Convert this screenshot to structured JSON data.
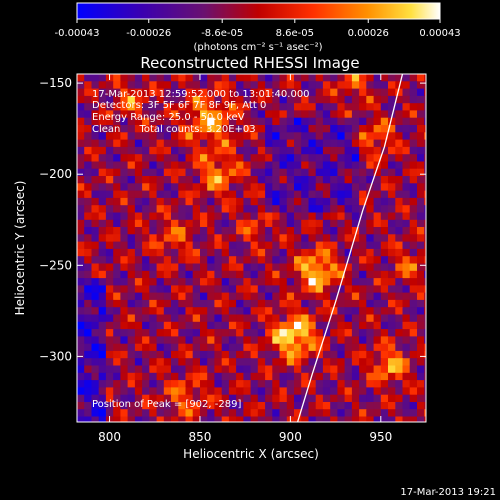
{
  "chart_data": {
    "type": "heatmap",
    "title": "Reconstructed RHESSI Image",
    "xlabel": "Heliocentric X (arcsec)",
    "ylabel": "Heliocentric Y (arcsec)",
    "xlim": [
      782,
      975
    ],
    "ylim": [
      -336,
      -145
    ],
    "x_ticks": [
      800,
      850,
      900,
      950
    ],
    "y_ticks": [
      -150,
      -200,
      -250,
      -300
    ],
    "colorbar": {
      "min": -0.00043,
      "max": 0.00043,
      "ticks": [
        -0.00043,
        -0.00026,
        -8.6e-05,
        8.6e-05,
        0.00026,
        0.00043
      ],
      "tick_labels": [
        "-0.00043",
        "-0.00026",
        "-8.6e-05",
        "8.6e-05",
        "0.00026",
        "0.00043"
      ],
      "unit_label": "(photons cm⁻² s⁻¹ asec⁻²)",
      "colormap": "red-temperature (blue to white)"
    },
    "annotations": {
      "time_range": "17-Mar-2013 12:59:52.000 to 13:01:40.000",
      "detectors": "Detectors: 3F 5F 6F 7F 8F 9F, Att 0",
      "energy_range": "Energy Range: 25.0 - 50.0 keV",
      "algorithm": "Clean      Total counts: 3.20E+03",
      "peak": "Position of Peak = [902, -289]"
    },
    "limb": {
      "points": [
        [
          904,
          -336
        ],
        [
          912,
          -310
        ],
        [
          925,
          -270
        ],
        [
          940,
          -220
        ],
        [
          952,
          -185
        ],
        [
          962,
          -145
        ]
      ],
      "color": "#ffffff"
    },
    "grid": false,
    "legend": "none"
  },
  "footer": {
    "timestamp": "17-Mar-2013 19:21"
  }
}
